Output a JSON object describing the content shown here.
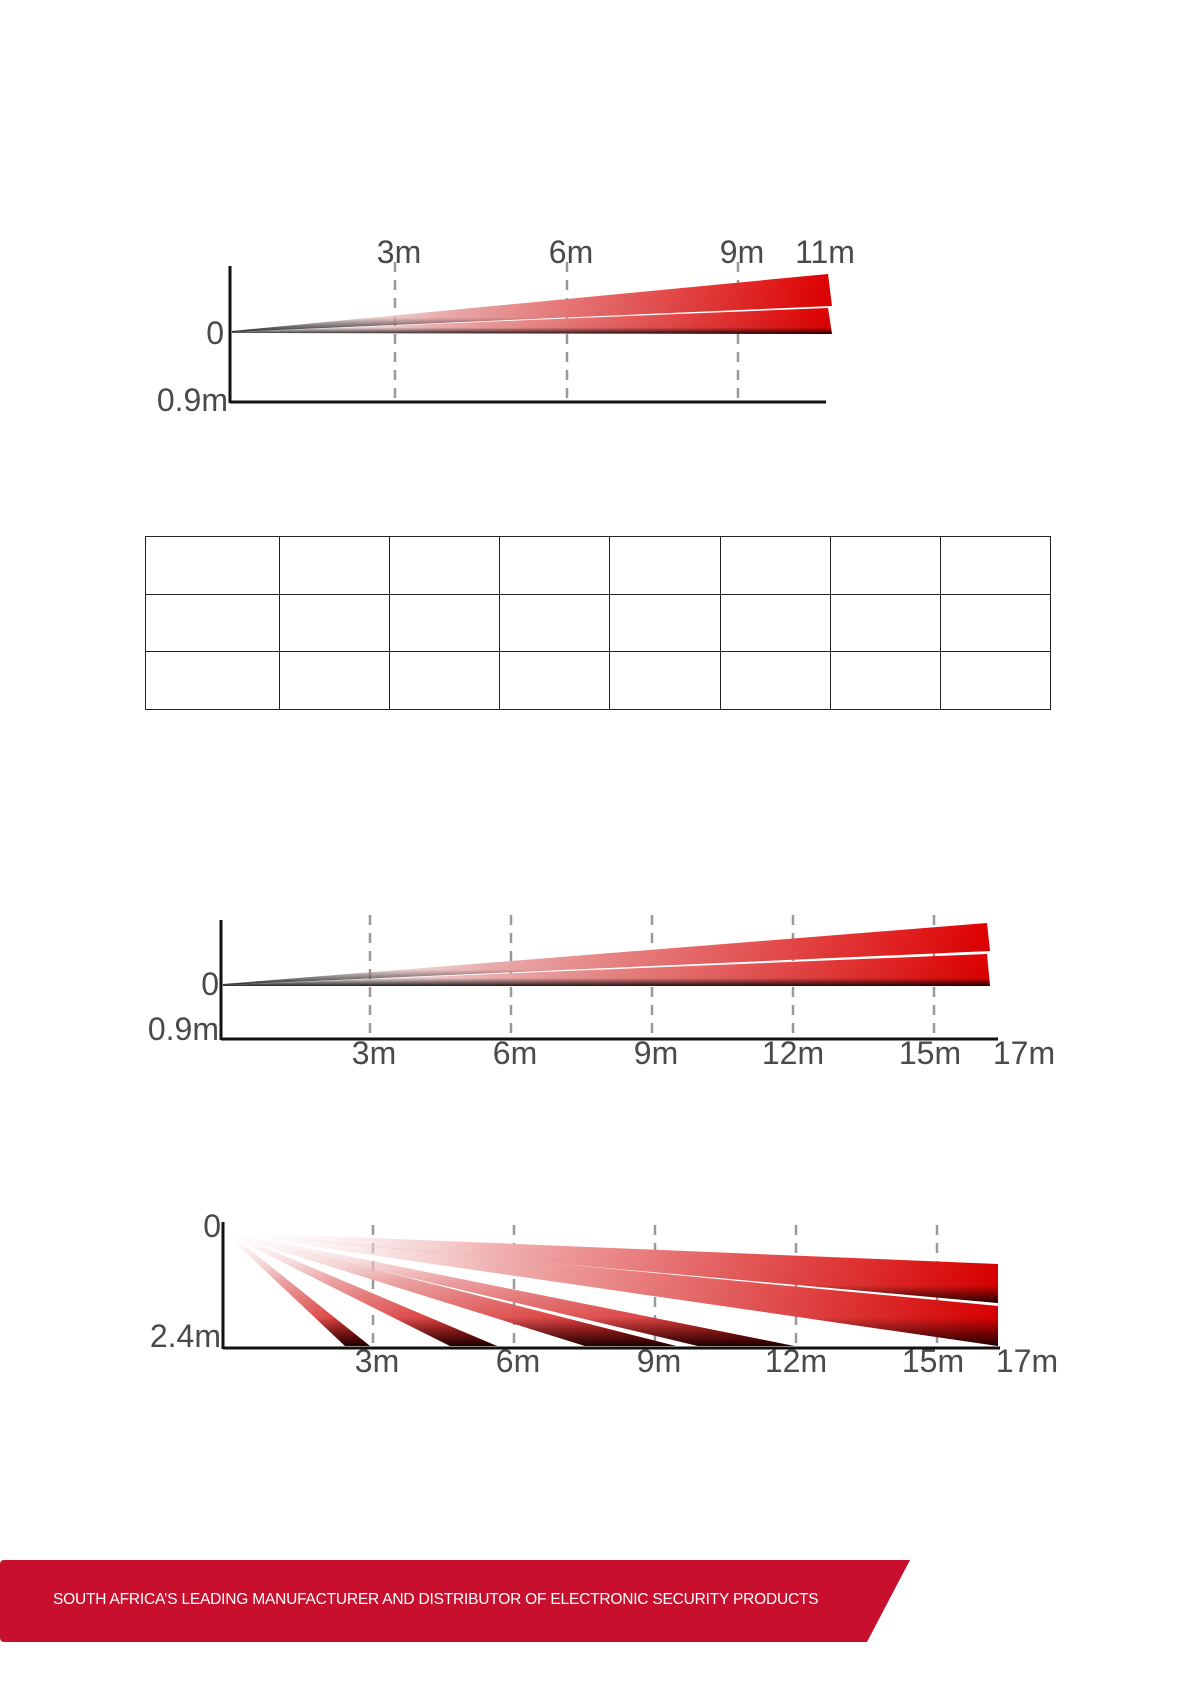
{
  "diagram_top": {
    "top_labels": [
      "3m",
      "6m",
      "9m",
      "11m"
    ],
    "left_labels": [
      "0",
      "0.9m"
    ]
  },
  "spec_table": {
    "rows": [
      [
        "",
        "",
        "",
        "",
        "",
        "",
        "",
        ""
      ],
      [
        "",
        "",
        "",
        "",
        "",
        "",
        "",
        ""
      ],
      [
        "",
        "",
        "",
        "",
        "",
        "",
        "",
        ""
      ]
    ]
  },
  "diagram_middle": {
    "left_labels": [
      "0",
      "0.9m"
    ],
    "bottom_labels": [
      "3m",
      "6m",
      "9m",
      "12m",
      "15m",
      "17m"
    ]
  },
  "diagram_bottom": {
    "left_labels": [
      "0",
      "2.4m"
    ],
    "bottom_labels": [
      "3m",
      "6m",
      "9m",
      "12m",
      "15m",
      "17m"
    ]
  },
  "footer": {
    "tagline": "SOUTH AFRICA’S LEADING MANUFACTURER AND DISTRIBUTOR OF ELECTRONIC SECURITY PRODUCTS",
    "brand_color": "#c8102e"
  }
}
